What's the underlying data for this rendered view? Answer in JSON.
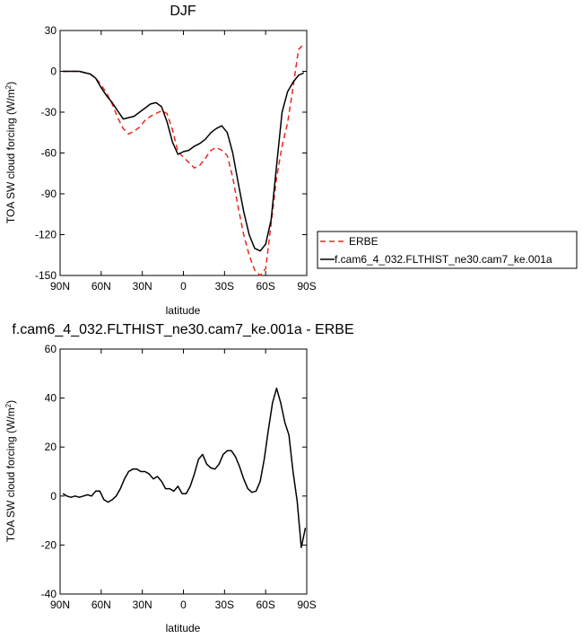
{
  "chart_data": [
    {
      "type": "line",
      "title": "DJF",
      "xlabel": "latitude",
      "ylabel": "TOA SW cloud forcing (W/m²)",
      "ylabel_main": "TOA SW cloud forcing (W/m",
      "ylabel_sup": "2",
      "ylabel_tail": ")",
      "xlim": [
        90,
        -90
      ],
      "ylim": [
        -150,
        30
      ],
      "x_ticks": [
        90,
        60,
        30,
        0,
        -30,
        -60,
        -90
      ],
      "x_tick_labels": [
        "90N",
        "60N",
        "30N",
        "0",
        "30S",
        "60S",
        "90S"
      ],
      "y_ticks": [
        30,
        0,
        -30,
        -60,
        -90,
        -120,
        -150
      ],
      "y_tick_labels": [
        "30",
        "0",
        "-30",
        "-60",
        "-90",
        "-120",
        "-150"
      ],
      "grid": false,
      "legend_position": "right",
      "x": [
        88,
        84,
        80,
        76,
        72,
        68,
        64,
        60,
        56,
        52,
        48,
        44,
        40,
        36,
        32,
        28,
        24,
        20,
        16,
        12,
        8,
        4,
        0,
        -4,
        -8,
        -12,
        -16,
        -20,
        -24,
        -28,
        -32,
        -36,
        -40,
        -44,
        -48,
        -52,
        -56,
        -60,
        -64,
        -68,
        -72,
        -76,
        -80,
        -84,
        -88
      ],
      "series": [
        {
          "name": "ERBE",
          "color": "#e8281e",
          "dash": "dashed",
          "values": [
            0,
            0,
            0,
            0,
            -1,
            -2,
            -5,
            -10,
            -16,
            -24,
            -34,
            -42,
            -46,
            -44,
            -41,
            -36,
            -33,
            -31,
            -29,
            -31,
            -43,
            -59,
            -63,
            -67,
            -71,
            -69,
            -64,
            -58,
            -56,
            -58,
            -62,
            -78,
            -100,
            -120,
            -135,
            -146,
            -150,
            -145,
            -112,
            -78,
            -55,
            -38,
            -12,
            16,
            20
          ]
        },
        {
          "name": "f.cam6_4_032.FLTHIST_ne30.cam7_ke.001a",
          "color": "#000000",
          "dash": "solid",
          "values": [
            0,
            0,
            0,
            0,
            -1,
            -2,
            -5,
            -12,
            -18,
            -23,
            -29,
            -35,
            -34,
            -33,
            -30,
            -27,
            -24,
            -23,
            -26,
            -37,
            -52,
            -61,
            -59,
            -58,
            -55,
            -53,
            -50,
            -45,
            -42,
            -40,
            -45,
            -60,
            -82,
            -103,
            -120,
            -130,
            -132,
            -127,
            -109,
            -69,
            -30,
            -15,
            -8,
            -3,
            -1
          ]
        }
      ]
    },
    {
      "type": "line",
      "title": "f.cam6_4_032.FLTHIST_ne30.cam7_ke.001a - ERBE",
      "xlabel": "latitude",
      "ylabel": "TOA SW cloud forcing (W/m²)",
      "ylabel_main": "TOA SW cloud forcing (W/m",
      "ylabel_sup": "2",
      "ylabel_tail": ")",
      "xlim": [
        90,
        -90
      ],
      "ylim": [
        -40,
        60
      ],
      "x_ticks": [
        90,
        60,
        30,
        0,
        -30,
        -60,
        -90
      ],
      "x_tick_labels": [
        "90N",
        "60N",
        "30N",
        "0",
        "30S",
        "60S",
        "90S"
      ],
      "y_ticks": [
        60,
        40,
        20,
        0,
        -20,
        -40
      ],
      "y_tick_labels": [
        "60",
        "40",
        "20",
        "0",
        "-20",
        "-40"
      ],
      "grid": false,
      "x": [
        88,
        85,
        82,
        79,
        76,
        73,
        70,
        67,
        64,
        61,
        58,
        55,
        52,
        49,
        46,
        43,
        40,
        37,
        34,
        31,
        28,
        25,
        22,
        19,
        16,
        13,
        10,
        7,
        4,
        1,
        -2,
        -5,
        -8,
        -11,
        -14,
        -17,
        -20,
        -23,
        -26,
        -29,
        -32,
        -35,
        -38,
        -41,
        -44,
        -47,
        -50,
        -53,
        -56,
        -59,
        -62,
        -65,
        -68,
        -71,
        -74,
        -77,
        -80,
        -83,
        -86,
        -89
      ],
      "series": [
        {
          "name": "",
          "color": "#000000",
          "dash": "solid",
          "values": [
            1,
            0,
            -0.5,
            0,
            -0.5,
            0,
            0.5,
            0,
            2,
            2,
            -1.5,
            -2.5,
            -1.5,
            0,
            3,
            7,
            10,
            11,
            11,
            10,
            10,
            9,
            7,
            8,
            6,
            3,
            3,
            2,
            4,
            1,
            1,
            4,
            9,
            15,
            17,
            13,
            11.5,
            11,
            13,
            17,
            18.5,
            18.5,
            16,
            12,
            7,
            3,
            1.5,
            2,
            6,
            15,
            27,
            38,
            44,
            38,
            30,
            25,
            10,
            -2,
            -21,
            -13
          ]
        }
      ]
    }
  ]
}
